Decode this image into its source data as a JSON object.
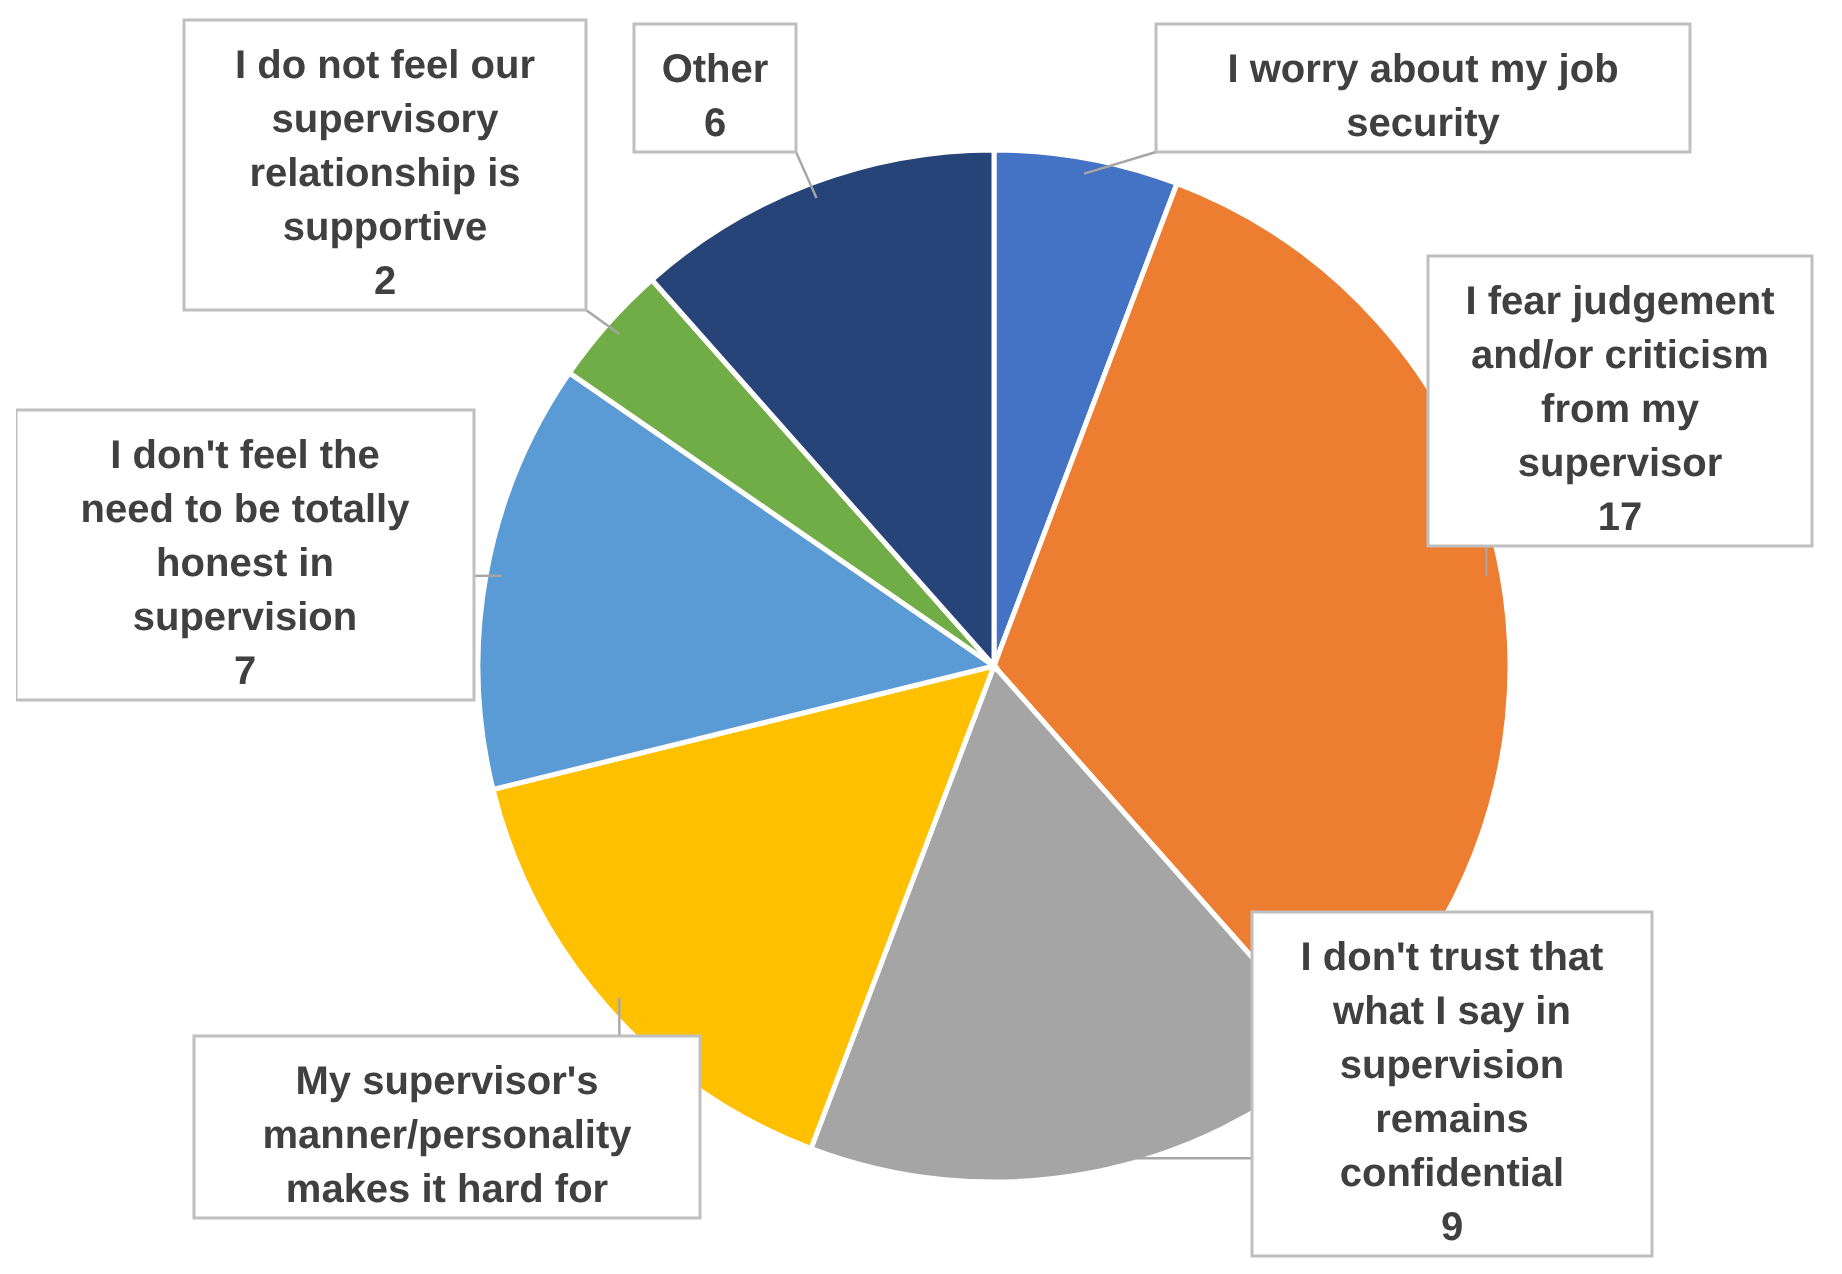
{
  "chart_data": {
    "type": "pie",
    "categories": [
      "I worry about my job security",
      "I fear judgement and/or criticism from my supervisor",
      "I don't trust that what I say in supervision remains confidential",
      "My supervisor's manner/personality makes it hard for",
      "I don't feel the need to be totally honest in supervision",
      "I do not feel our supervisory relationship is supportive",
      "Other"
    ],
    "values": [
      3,
      17,
      9,
      8,
      7,
      2,
      6
    ],
    "value_labels": [
      null,
      "17",
      "9",
      null,
      "7",
      "2",
      "6"
    ],
    "colors": [
      "#4472c4",
      "#ed7d31",
      "#a5a5a5",
      "#ffc000",
      "#5b9bd5",
      "#70ad47",
      "#264478"
    ]
  }
}
